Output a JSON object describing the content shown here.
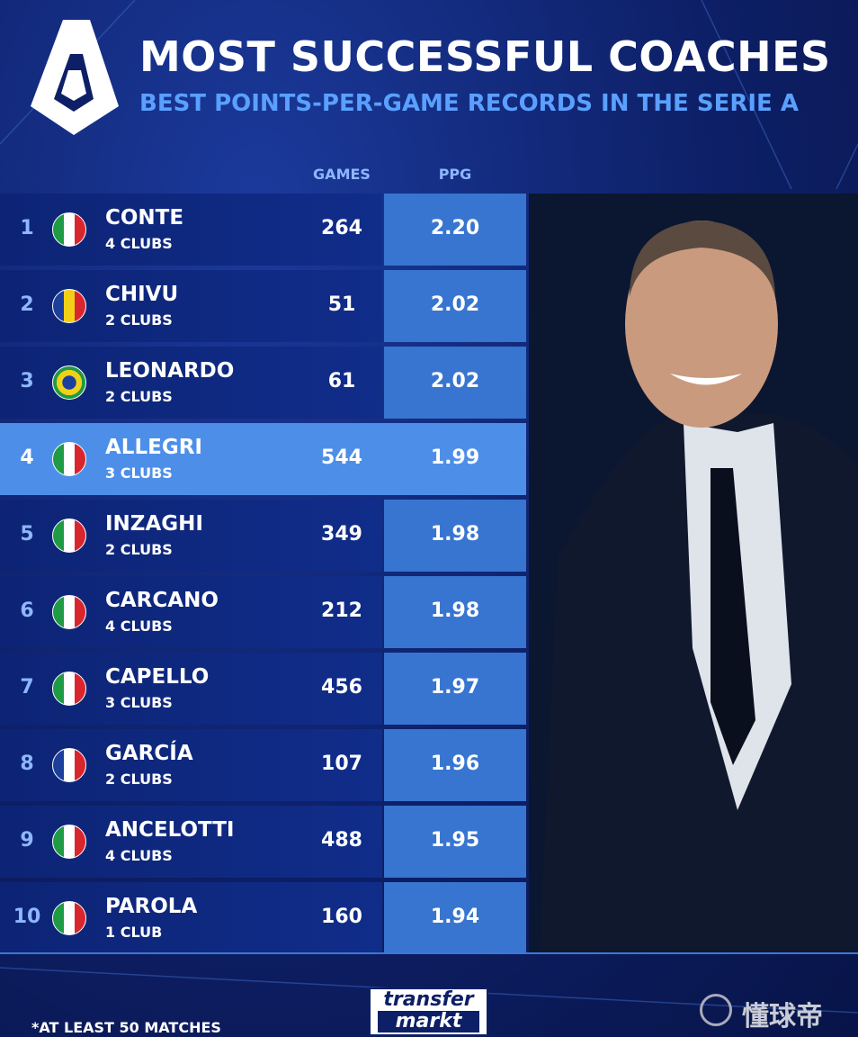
{
  "header": {
    "title": "MOST SUCCESSFUL COACHES",
    "subtitle": "BEST POINTS-PER-GAME RECORDS IN THE SERIE A"
  },
  "table": {
    "columns": [
      "GAMES",
      "PPG"
    ],
    "rows": [
      [
        "1",
        "CONTE",
        "4 CLUBS",
        "264",
        "2.20"
      ],
      [
        "2",
        "CHIVU",
        "2 CLUBS",
        "51",
        "2.02"
      ],
      [
        "3",
        "LEONARDO",
        "2 CLUBS",
        "61",
        "2.02"
      ],
      [
        "4",
        "ALLEGRI",
        "3 CLUBS",
        "544",
        "1.99"
      ],
      [
        "5",
        "INZAGHI",
        "2 CLUBS",
        "349",
        "1.98"
      ],
      [
        "6",
        "CARCANO",
        "4 CLUBS",
        "212",
        "1.98"
      ],
      [
        "7",
        "CAPELLO",
        "3 CLUBS",
        "456",
        "1.97"
      ],
      [
        "8",
        "GARCÍA",
        "2 CLUBS",
        "107",
        "1.96"
      ],
      [
        "9",
        "ANCELOTTI",
        "4 CLUBS",
        "488",
        "1.95"
      ],
      [
        "10",
        "PAROLA",
        "1 CLUB",
        "160",
        "1.94"
      ]
    ]
  },
  "footer": {
    "note": "*AT LEAST 50 MATCHES",
    "logo_top": "transfer",
    "logo_bottom": "markt",
    "watermark": "懂球帝"
  }
}
